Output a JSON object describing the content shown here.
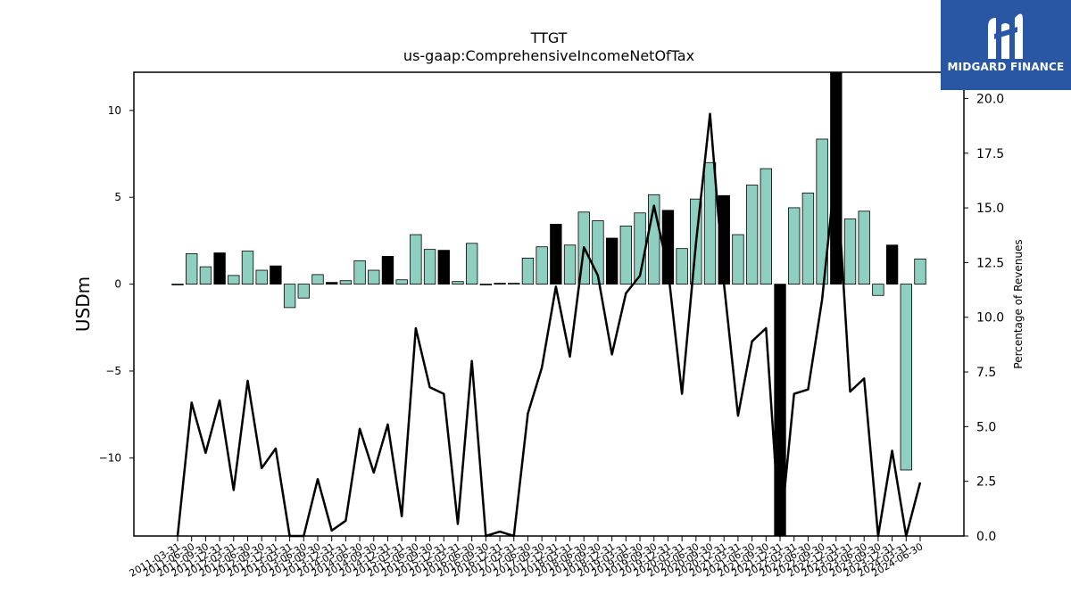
{
  "logo": {
    "text": "MIDGARD FINANCE",
    "icon": "midgard-logo-icon"
  },
  "chart_data": {
    "type": "bar",
    "title": "TTGT",
    "subtitle": "us-gaap:ComprehensiveIncomeNetOfTax",
    "ylabel": "USDm",
    "y2label": "Percentage of Revenues",
    "ylim": [
      -14.5,
      12.2
    ],
    "y2lim": [
      0.0,
      21.2
    ],
    "yticks": [
      -10,
      -5,
      0,
      5,
      10
    ],
    "yticklabels": [
      "−10",
      "−5",
      "0",
      "5",
      "10"
    ],
    "y2ticks": [
      0.0,
      2.5,
      5.0,
      7.5,
      10.0,
      12.5,
      15.0,
      17.5,
      20.0
    ],
    "y2ticklabels": [
      "0.0",
      "2.5",
      "5.0",
      "7.5",
      "10.0",
      "12.5",
      "15.0",
      "17.5",
      "20.0"
    ],
    "colors": {
      "quarter_bar": "#8ecfc0",
      "annual_bar": "#000000",
      "line": "#000000"
    },
    "categories": [
      "2011-03-31",
      "2011-06-30",
      "2011-09-30",
      "2011-12-31",
      "2012-03-31",
      "2012-06-30",
      "2012-09-30",
      "2012-12-31",
      "2013-03-31",
      "2013-06-30",
      "2013-09-30",
      "2013-12-31",
      "2014-03-31",
      "2014-06-30",
      "2014-09-30",
      "2014-12-31",
      "2015-03-31",
      "2015-06-30",
      "2015-09-30",
      "2015-12-31",
      "2016-03-31",
      "2016-06-30",
      "2016-09-30",
      "2016-12-31",
      "2017-03-31",
      "2017-06-30",
      "2017-09-30",
      "2017-12-31",
      "2018-03-31",
      "2018-06-30",
      "2018-09-30",
      "2018-12-31",
      "2019-03-31",
      "2019-06-30",
      "2019-09-30",
      "2019-12-31",
      "2020-03-31",
      "2020-06-30",
      "2020-09-30",
      "2020-12-31",
      "2021-03-31",
      "2021-06-30",
      "2021-09-30",
      "2021-12-31",
      "2022-03-31",
      "2022-06-30",
      "2022-09-30",
      "2022-12-31",
      "2023-03-31",
      "2023-06-30",
      "2023-09-30",
      "2023-12-31",
      "2024-03-31",
      "2024-06-30"
    ],
    "xticklabels": [
      "2011-03-31",
      "2011-06-30",
      "2011-09-30",
      "2011-12-31",
      "2012-03-31",
      "2012-06-30",
      "2012-09-30",
      "2012-12-31",
      "2013-03-31",
      "2013-06-30",
      "2013-09-30",
      "2013-12-31",
      "2014-03-31",
      "2014-06-30",
      "2014-09-30",
      "2014-12-31",
      "2015-03-31",
      "2015-06-30",
      "2015-09-30",
      "2015-12-31",
      "2016-03-31",
      "2016-06-30",
      "2016-09-30",
      "2016-12-31",
      "2017-03-31",
      "2017-06-30",
      "2017-09-30",
      "2017-12-31",
      "2018-03-31",
      "2018-06-30",
      "2018-09-30",
      "2018-12-31",
      "2019-03-31",
      "2019-06-30",
      "2019-09-30",
      "2019-12-31",
      "2020-03-31",
      "2020-06-30",
      "2020-09-30",
      "2020-12-31",
      "2021-03-31",
      "2021-06-30",
      "2021-09-30",
      "2021-12-31",
      "2022-03-31",
      "2022-06-30",
      "2022-09-30",
      "2022-12-31",
      "2023-03-31",
      "2023-06-30",
      "2023-09-30",
      "2023-12-31",
      "2024-03-31",
      "2024-06-30"
    ],
    "series": [
      {
        "type": "bar",
        "axis": "left",
        "values": [
          -0.05,
          1.75,
          1.0,
          1.8,
          0.5,
          1.9,
          0.8,
          1.05,
          -1.35,
          -0.8,
          0.55,
          0.1,
          0.2,
          1.35,
          0.8,
          1.6,
          0.25,
          2.85,
          2.0,
          1.95,
          0.15,
          2.35,
          -0.05,
          0.05,
          0.05,
          1.5,
          2.15,
          3.45,
          2.25,
          4.15,
          3.65,
          2.65,
          3.35,
          4.1,
          5.15,
          4.25,
          2.05,
          4.9,
          7.0,
          5.1,
          2.85,
          5.7,
          6.65,
          -14.5,
          4.4,
          5.25,
          8.35,
          12.2,
          3.75,
          4.2,
          -0.65,
          2.25,
          -10.7,
          1.45
        ],
        "annual": [
          false,
          false,
          false,
          true,
          false,
          false,
          false,
          true,
          false,
          false,
          false,
          true,
          false,
          false,
          false,
          true,
          false,
          false,
          false,
          true,
          false,
          false,
          false,
          true,
          false,
          false,
          false,
          true,
          false,
          false,
          false,
          true,
          false,
          false,
          false,
          true,
          false,
          false,
          false,
          true,
          false,
          false,
          false,
          true,
          false,
          false,
          false,
          true,
          false,
          false,
          false,
          true,
          false,
          false
        ]
      },
      {
        "type": "line",
        "axis": "right",
        "values": [
          0.0,
          6.1,
          3.8,
          6.2,
          2.1,
          7.1,
          3.1,
          4.0,
          0.0,
          0.0,
          2.6,
          0.25,
          0.7,
          4.9,
          2.9,
          5.1,
          0.9,
          9.5,
          6.8,
          6.5,
          0.55,
          8.0,
          0.0,
          0.2,
          0.0,
          5.6,
          7.7,
          11.4,
          8.2,
          13.2,
          11.9,
          8.3,
          11.1,
          11.9,
          15.1,
          12.2,
          6.5,
          13.4,
          19.3,
          11.5,
          5.5,
          8.9,
          9.5,
          0.0,
          6.5,
          6.7,
          10.8,
          17.0,
          6.6,
          7.2,
          0.0,
          3.9,
          0.0,
          2.45
        ]
      }
    ]
  }
}
